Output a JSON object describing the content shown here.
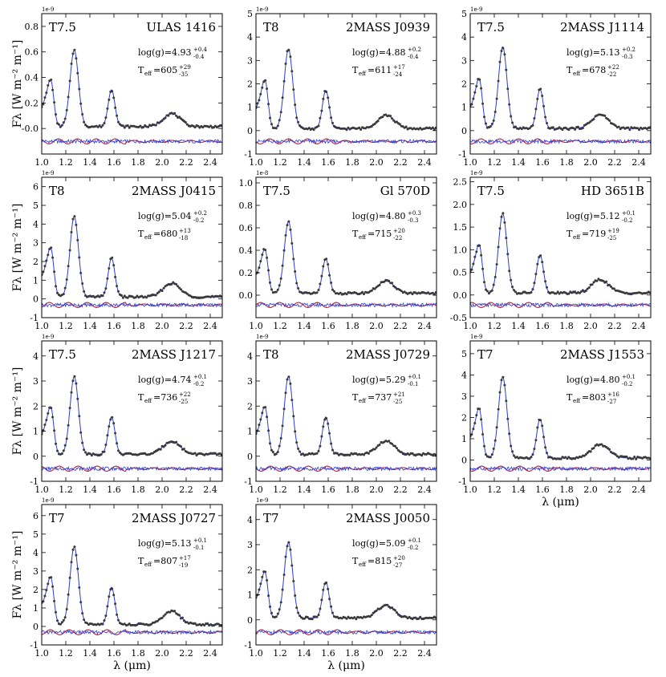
{
  "figure": {
    "ylabel": "Fλ [W m⁻² m⁻¹]",
    "xlabel": "λ (μm)"
  },
  "colors": {
    "model": "#2a3cd6",
    "data": "#3a3a3a",
    "residual_model": "#c8183c",
    "residual_data": "#2a3cd6"
  },
  "chart_data": [
    {
      "type": "line",
      "spt": "T7.5",
      "name": "ULAS 1416",
      "logg": "log(g)=4.93",
      "logg_up": "+0.4",
      "logg_lo": "-0.4",
      "teff": "T",
      "teff_sub": "eff",
      "teff_val": "=605",
      "teff_up": "+29",
      "teff_lo": "-35",
      "scale": "1e-9",
      "peak": 0.6,
      "ylim": [
        -0.2,
        0.9
      ],
      "yticks": [
        -0.0,
        0.2,
        0.4,
        0.6,
        0.8
      ],
      "ytick_labels": [
        "-0.0",
        "0.2",
        "0.4",
        "0.6",
        "0.8"
      ],
      "xticks": [
        1.0,
        1.2,
        1.4,
        1.6,
        1.8,
        2.0,
        2.2,
        2.4
      ],
      "xtick_labels": [
        "1.0",
        "1.2",
        "1.4",
        "1.6",
        "1.8",
        "2.0",
        "2.2",
        "2.4"
      ],
      "xlim": [
        1.0,
        2.5
      ]
    },
    {
      "type": "line",
      "spt": "T8",
      "name": "2MASS J0939",
      "logg": "log(g)=4.88",
      "logg_up": "+0.2",
      "logg_lo": "-0.4",
      "teff": "T",
      "teff_sub": "eff",
      "teff_val": "=611",
      "teff_up": "+17",
      "teff_lo": "-24",
      "scale": "1e-9",
      "peak": 3.4,
      "ylim": [
        -1,
        5
      ],
      "yticks": [
        -1,
        0,
        1,
        2,
        3,
        4,
        5
      ],
      "ytick_labels": [
        "-1",
        "0",
        "1",
        "2",
        "3",
        "4",
        "5"
      ],
      "xticks": [
        1.0,
        1.2,
        1.4,
        1.6,
        1.8,
        2.0,
        2.2,
        2.4
      ],
      "xtick_labels": [
        "1.0",
        "1.2",
        "1.4",
        "1.6",
        "1.8",
        "2.0",
        "2.2",
        "2.4"
      ],
      "xlim": [
        1.0,
        2.5
      ]
    },
    {
      "type": "line",
      "spt": "T7.5",
      "name": "2MASS J1114",
      "logg": "log(g)=5.13",
      "logg_up": "+0.2",
      "logg_lo": "-0.3",
      "teff": "T",
      "teff_sub": "eff",
      "teff_val": "=678",
      "teff_up": "+22",
      "teff_lo": "-22",
      "scale": "1e-9",
      "peak": 3.5,
      "ylim": [
        -1,
        5
      ],
      "yticks": [
        -1,
        0,
        1,
        2,
        3,
        4,
        5
      ],
      "ytick_labels": [
        "-1",
        "0",
        "1",
        "2",
        "3",
        "4",
        "5"
      ],
      "xticks": [
        1.0,
        1.2,
        1.4,
        1.6,
        1.8,
        2.0,
        2.2,
        2.4
      ],
      "xtick_labels": [
        "1.0",
        "1.2",
        "1.4",
        "1.6",
        "1.8",
        "2.0",
        "2.2",
        "2.4"
      ],
      "xlim": [
        1.0,
        2.5
      ]
    },
    {
      "type": "line",
      "spt": "T8",
      "name": "2MASS J0415",
      "logg": "log(g)=5.04",
      "logg_up": "+0.2",
      "logg_lo": "-0.2",
      "teff": "T",
      "teff_sub": "eff",
      "teff_val": "=680",
      "teff_up": "+13",
      "teff_lo": "-18",
      "scale": "1e-9",
      "peak": 4.3,
      "ylim": [
        -1,
        6.5
      ],
      "yticks": [
        -1,
        0,
        1,
        2,
        3,
        4,
        5,
        6
      ],
      "ytick_labels": [
        "-1",
        "0",
        "1",
        "2",
        "3",
        "4",
        "5",
        "6"
      ],
      "xticks": [
        1.0,
        1.2,
        1.4,
        1.6,
        1.8,
        2.0,
        2.2,
        2.4
      ],
      "xtick_labels": [
        "1.0",
        "1.2",
        "1.4",
        "1.6",
        "1.8",
        "2.0",
        "2.2",
        "2.4"
      ],
      "xlim": [
        1.0,
        2.5
      ]
    },
    {
      "type": "line",
      "spt": "T7.5",
      "name": "Gl 570D",
      "logg": "log(g)=4.80",
      "logg_up": "+0.3",
      "logg_lo": "-0.3",
      "teff": "T",
      "teff_sub": "eff",
      "teff_val": "=715",
      "teff_up": "+20",
      "teff_lo": "-22",
      "scale": "1e-8",
      "peak": 0.64,
      "ylim": [
        -0.2,
        1.05
      ],
      "yticks": [
        0.0,
        0.2,
        0.4,
        0.6,
        0.8,
        1.0
      ],
      "ytick_labels": [
        "0.0",
        "0.2",
        "0.4",
        "0.6",
        "0.8",
        "1.0"
      ],
      "xticks": [
        1.0,
        1.2,
        1.4,
        1.6,
        1.8,
        2.0,
        2.2,
        2.4
      ],
      "xtick_labels": [
        "1.0",
        "1.2",
        "1.4",
        "1.6",
        "1.8",
        "2.0",
        "2.2",
        "2.4"
      ],
      "xlim": [
        1.0,
        2.5
      ]
    },
    {
      "type": "line",
      "spt": "T7.5",
      "name": "HD 3651B",
      "logg": "log(g)=5.12",
      "logg_up": "+0.1",
      "logg_lo": "-0.2",
      "teff": "T",
      "teff_sub": "eff",
      "teff_val": "=719",
      "teff_up": "+19",
      "teff_lo": "-25",
      "scale": "1e-9",
      "peak": 1.75,
      "ylim": [
        -0.5,
        2.6
      ],
      "yticks": [
        -0.5,
        0.0,
        0.5,
        1.0,
        1.5,
        2.0,
        2.5
      ],
      "ytick_labels": [
        "-0.5",
        "0.0",
        "0.5",
        "1.0",
        "1.5",
        "2.0",
        "2.5"
      ],
      "xticks": [
        1.0,
        1.2,
        1.4,
        1.6,
        1.8,
        2.0,
        2.2,
        2.4
      ],
      "xtick_labels": [
        "1.0",
        "1.2",
        "1.4",
        "1.6",
        "1.8",
        "2.0",
        "2.2",
        "2.4"
      ],
      "xlim": [
        1.0,
        2.5
      ]
    },
    {
      "type": "line",
      "spt": "T7.5",
      "name": "2MASS J1217",
      "logg": "log(g)=4.74",
      "logg_up": "+0.1",
      "logg_lo": "-0.2",
      "teff": "T",
      "teff_sub": "eff",
      "teff_val": "=736",
      "teff_up": "+22",
      "teff_lo": "-25",
      "scale": "1e-9",
      "peak": 3.1,
      "ylim": [
        -1,
        4.6
      ],
      "yticks": [
        -1,
        0,
        1,
        2,
        3,
        4
      ],
      "ytick_labels": [
        "-1",
        "0",
        "1",
        "2",
        "3",
        "4"
      ],
      "xticks": [
        1.0,
        1.2,
        1.4,
        1.6,
        1.8,
        2.0,
        2.2,
        2.4
      ],
      "xtick_labels": [
        "1.0",
        "1.2",
        "1.4",
        "1.6",
        "1.8",
        "2.0",
        "2.2",
        "2.4"
      ],
      "xlim": [
        1.0,
        2.5
      ]
    },
    {
      "type": "line",
      "spt": "T8",
      "name": "2MASS J0729",
      "logg": "log(g)=5.29",
      "logg_up": "+0.1",
      "logg_lo": "-0.1",
      "teff": "T",
      "teff_sub": "eff",
      "teff_val": "=737",
      "teff_up": "+21",
      "teff_lo": "-25",
      "scale": "1e-9",
      "peak": 3.1,
      "ylim": [
        -1,
        4.6
      ],
      "yticks": [
        -1,
        0,
        1,
        2,
        3,
        4
      ],
      "ytick_labels": [
        "-1",
        "0",
        "1",
        "2",
        "3",
        "4"
      ],
      "xticks": [
        1.0,
        1.2,
        1.4,
        1.6,
        1.8,
        2.0,
        2.2,
        2.4
      ],
      "xtick_labels": [
        "1.0",
        "1.2",
        "1.4",
        "1.6",
        "1.8",
        "2.0",
        "2.2",
        "2.4"
      ],
      "xlim": [
        1.0,
        2.5
      ]
    },
    {
      "type": "line",
      "spt": "T7",
      "name": "2MASS J1553",
      "logg": "log(g)=4.80",
      "logg_up": "+0.1",
      "logg_lo": "-0.2",
      "teff": "T",
      "teff_sub": "eff",
      "teff_val": "=803",
      "teff_up": "+16",
      "teff_lo": "-27",
      "scale": "1e-9",
      "peak": 3.8,
      "ylim": [
        -1,
        5.6
      ],
      "yticks": [
        -1,
        0,
        1,
        2,
        3,
        4,
        5
      ],
      "ytick_labels": [
        "-1",
        "0",
        "1",
        "2",
        "3",
        "4",
        "5"
      ],
      "xticks": [
        1.0,
        1.2,
        1.4,
        1.6,
        1.8,
        2.0,
        2.2,
        2.4
      ],
      "xtick_labels": [
        "1.0",
        "1.2",
        "1.4",
        "1.6",
        "1.8",
        "2.0",
        "2.2",
        "2.4"
      ],
      "xlim": [
        1.0,
        2.5
      ]
    },
    {
      "type": "line",
      "spt": "T7",
      "name": "2MASS J0727",
      "logg": "log(g)=5.13",
      "logg_up": "+0.1",
      "logg_lo": "-0.1",
      "teff": "T",
      "teff_sub": "eff",
      "teff_val": "=807",
      "teff_up": "+17",
      "teff_lo": "-19",
      "scale": "1e-9",
      "peak": 4.2,
      "ylim": [
        -1,
        6.6
      ],
      "yticks": [
        -1,
        0,
        1,
        2,
        3,
        4,
        5,
        6
      ],
      "ytick_labels": [
        "-1",
        "0",
        "1",
        "2",
        "3",
        "4",
        "5",
        "6"
      ],
      "xticks": [
        1.0,
        1.2,
        1.4,
        1.6,
        1.8,
        2.0,
        2.2,
        2.4
      ],
      "xtick_labels": [
        "1.0",
        "1.2",
        "1.4",
        "1.6",
        "1.8",
        "2.0",
        "2.2",
        "2.4"
      ],
      "xlim": [
        1.0,
        2.5
      ]
    },
    {
      "type": "line",
      "spt": "T7",
      "name": "2MASS J0050",
      "logg": "log(g)=5.09",
      "logg_up": "+0.1",
      "logg_lo": "-0.2",
      "teff": "T",
      "teff_sub": "eff",
      "teff_val": "=815",
      "teff_up": "+20",
      "teff_lo": "-27",
      "scale": "1e-9",
      "peak": 3.0,
      "ylim": [
        -1,
        4.6
      ],
      "yticks": [
        -1,
        0,
        1,
        2,
        3,
        4
      ],
      "ytick_labels": [
        "-1",
        "0",
        "1",
        "2",
        "3",
        "4"
      ],
      "xticks": [
        1.0,
        1.2,
        1.4,
        1.6,
        1.8,
        2.0,
        2.2,
        2.4
      ],
      "xtick_labels": [
        "1.0",
        "1.2",
        "1.4",
        "1.6",
        "1.8",
        "2.0",
        "2.2",
        "2.4"
      ],
      "xlim": [
        1.0,
        2.5
      ]
    }
  ]
}
